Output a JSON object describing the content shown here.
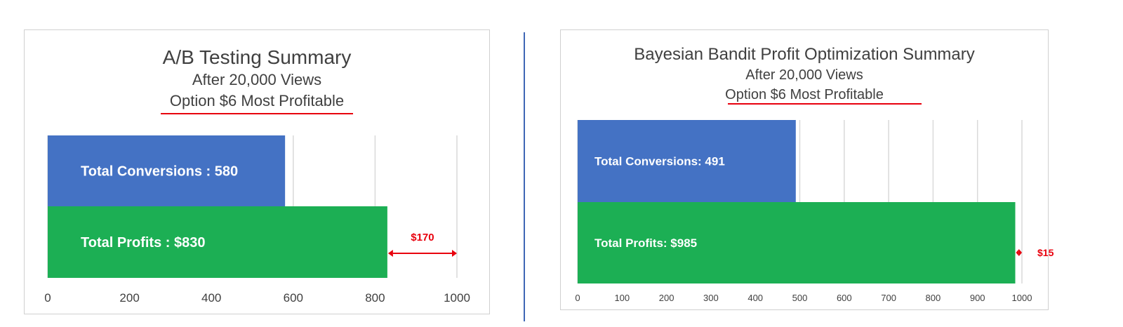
{
  "colors": {
    "conversions": "#4472c4",
    "profits": "#1caf54",
    "annotation": "#e8000d",
    "grid": "#d9d9d9",
    "text": "#404040",
    "divider": "#3f67b5"
  },
  "chart_data": [
    {
      "type": "bar",
      "orientation": "horizontal",
      "title": "A/B Testing Summary",
      "subtitle": "After 20,000 Views",
      "subtitle2": "Option $6 Most Profitable",
      "categories": [
        "Total Conversions",
        "Total Profits"
      ],
      "values": [
        580,
        830
      ],
      "bar_labels": [
        "Total Conversions : 580",
        "Total Profits : $830"
      ],
      "xlim": [
        0,
        1000
      ],
      "xticks": [
        0,
        200,
        400,
        600,
        800,
        1000
      ],
      "grid": true,
      "gap_annotation": {
        "from": 830,
        "to": 1000,
        "label": "$170"
      }
    },
    {
      "type": "bar",
      "orientation": "horizontal",
      "title": "Bayesian Bandit Profit Optimization Summary",
      "subtitle": "After 20,000 Views",
      "subtitle2": "Option $6 Most Profitable",
      "categories": [
        "Total Conversions",
        "Total Profits"
      ],
      "values": [
        491,
        985
      ],
      "bar_labels": [
        "Total Conversions: 491",
        "Total Profits: $985"
      ],
      "xlim": [
        0,
        1000
      ],
      "xticks": [
        0,
        100,
        200,
        300,
        400,
        500,
        600,
        700,
        800,
        900,
        1000
      ],
      "grid": true,
      "gap_annotation": {
        "from": 985,
        "to": 1000,
        "label": "$15"
      }
    }
  ]
}
